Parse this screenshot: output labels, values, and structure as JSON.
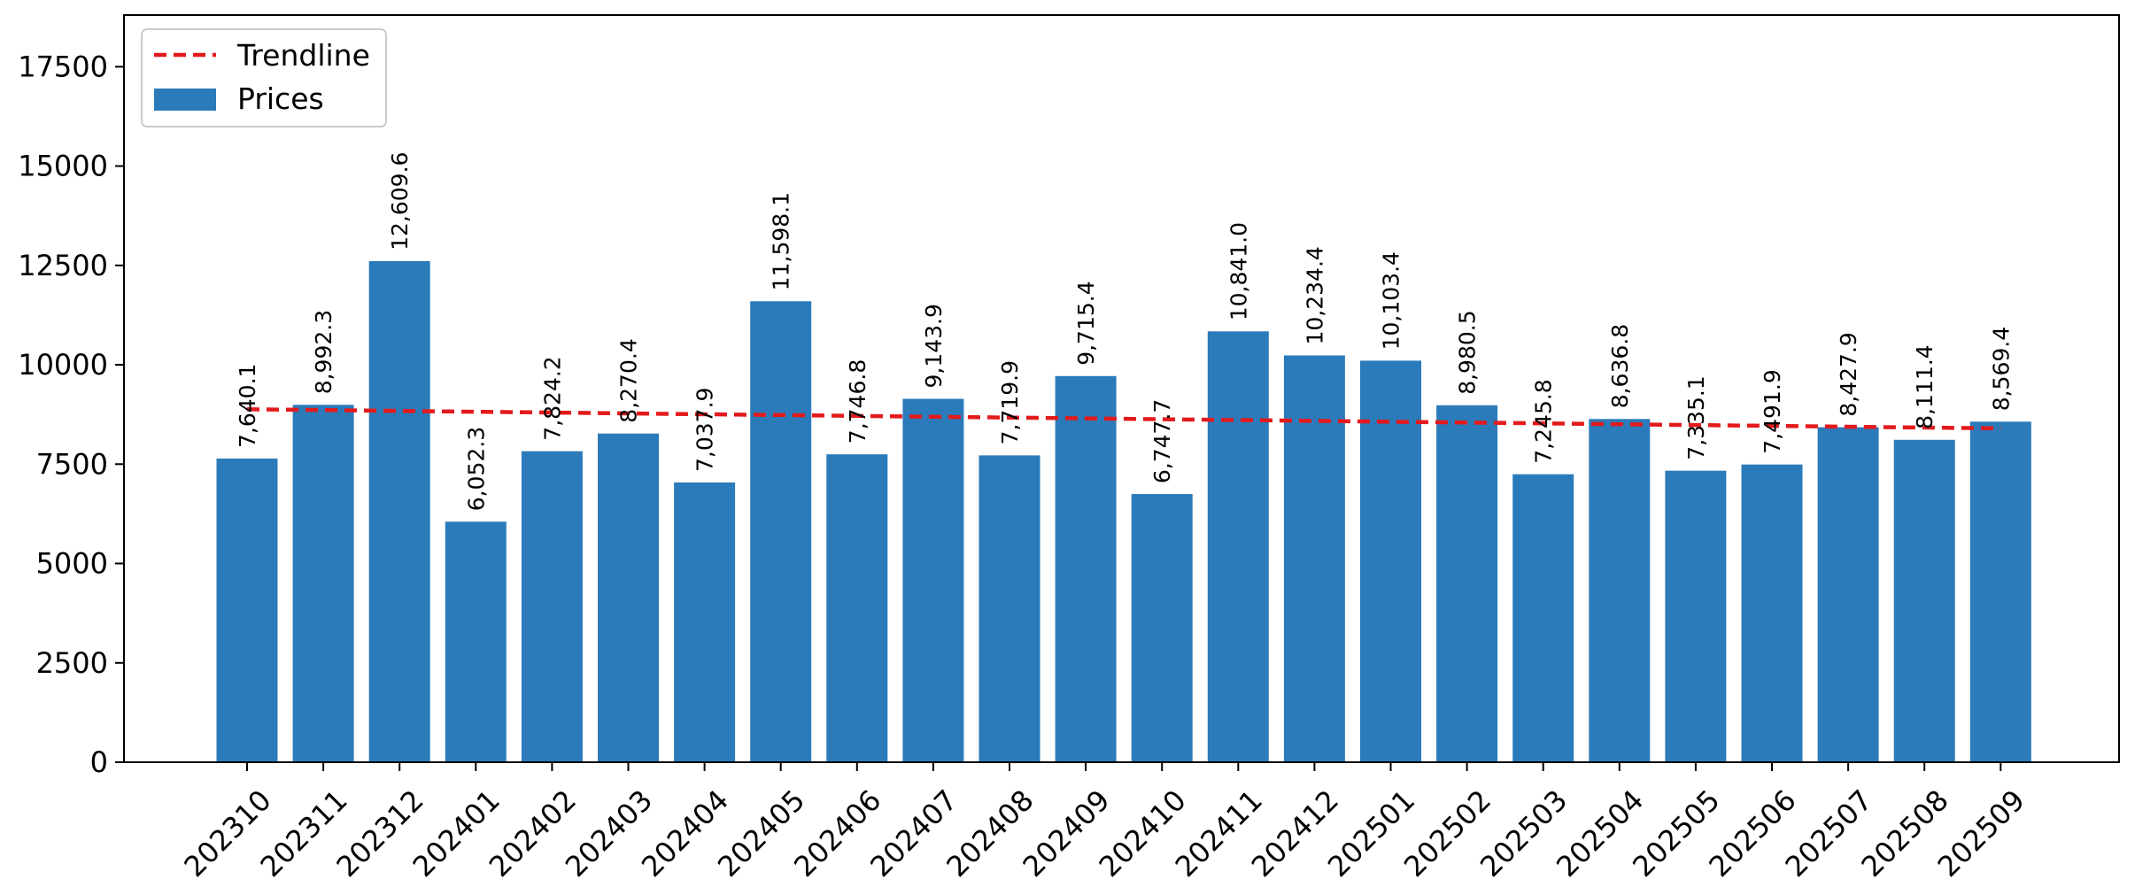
{
  "chart_data": {
    "type": "bar",
    "title": "",
    "xlabel": "",
    "ylabel": "",
    "categories": [
      "202310",
      "202311",
      "202312",
      "202401",
      "202402",
      "202403",
      "202404",
      "202405",
      "202406",
      "202407",
      "202408",
      "202409",
      "202410",
      "202411",
      "202412",
      "202501",
      "202502",
      "202503",
      "202504",
      "202505",
      "202506",
      "202507",
      "202508",
      "202509"
    ],
    "series": [
      {
        "name": "Prices",
        "type": "bar",
        "color": "#2b7bba",
        "values": [
          7640.1,
          8992.3,
          12609.6,
          6052.3,
          7824.2,
          8270.4,
          7037.9,
          11598.1,
          7746.8,
          9143.9,
          7719.9,
          9715.4,
          6747.7,
          10841.0,
          10234.4,
          10103.4,
          8980.5,
          7245.8,
          8636.8,
          7335.1,
          7491.9,
          8427.9,
          8111.4,
          8569.4
        ],
        "labels": [
          "7,640.1",
          "8,992.3",
          "12,609.6",
          "6,052.3",
          "7,824.2",
          "8,270.4",
          "7,037.9",
          "11,598.1",
          "7,746.8",
          "9,143.9",
          "7,719.9",
          "9,715.4",
          "6,747.7",
          "10,841.0",
          "10,234.4",
          "10,103.4",
          "8,980.5",
          "7,245.8",
          "8,636.8",
          "7,335.1",
          "7,491.9",
          "8,427.9",
          "8,111.4",
          "8,569.4"
        ]
      },
      {
        "name": "Trendline",
        "type": "line",
        "style": "dashed",
        "color": "#e31a1c",
        "start": 8880,
        "end": 8400
      }
    ],
    "ylim": [
      0,
      18800
    ],
    "yticks": [
      0,
      2500,
      5000,
      7500,
      10000,
      12500,
      15000,
      17500
    ],
    "grid": false,
    "legend_position": "top-left"
  }
}
